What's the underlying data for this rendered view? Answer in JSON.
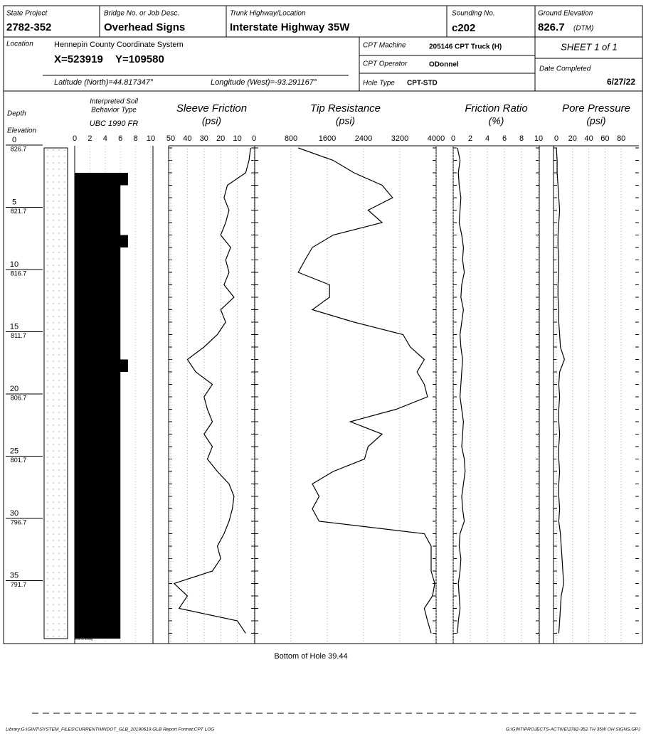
{
  "header": {
    "state_project_label": "State Project",
    "state_project": "2782-352",
    "bridge_label": "Bridge No. or Job Desc.",
    "bridge": "Overhead Signs",
    "trunk_label": "Trunk Highway/Location",
    "trunk": "Interstate Highway 35W",
    "sounding_label": "Sounding No.",
    "sounding": "c202",
    "ground_elev_label": "Ground Elevation",
    "ground_elev": 826.7,
    "ground_elev_unit": "(DTM)",
    "location_label": "Location",
    "location": "Hennepin County Coordinate System",
    "x_coord": "X=523919",
    "y_coord": "Y=109580",
    "latitude": "Latitude (North)=44.817347°",
    "longitude": "Longitude (West)=-93.291167°",
    "cpt_machine_label": "CPT Machine",
    "cpt_machine": "205146 CPT Truck (H)",
    "cpt_operator_label": "CPT Operator",
    "cpt_operator": "ODonnel",
    "hole_type_label": "Hole Type",
    "hole_type": "CPT-STD",
    "sheet": "SHEET 1 of 1",
    "date_label": "Date Completed",
    "date": "6/27/22"
  },
  "log": {
    "depth_label": "Depth",
    "elevation_label": "Elevation",
    "ylim": [
      0,
      40
    ],
    "depth_marks": [
      {
        "depth": 0,
        "elevation": 826.7
      },
      {
        "depth": 5,
        "elevation": 821.7
      },
      {
        "depth": 10,
        "elevation": 816.7
      },
      {
        "depth": 15,
        "elevation": 811.7
      },
      {
        "depth": 20,
        "elevation": 806.7
      },
      {
        "depth": 25,
        "elevation": 801.7
      },
      {
        "depth": 30,
        "elevation": 796.7
      },
      {
        "depth": 35,
        "elevation": 791.7
      }
    ],
    "depths": [
      0,
      1,
      2,
      3,
      4,
      5,
      6,
      7,
      8,
      9,
      10,
      11,
      12,
      13,
      14,
      15,
      16,
      17,
      18,
      19,
      20,
      21,
      22,
      23,
      24,
      25,
      26,
      27,
      28,
      29,
      30,
      31,
      32,
      33,
      34,
      35,
      36,
      37,
      38,
      39
    ],
    "soil": {
      "title": [
        "Interpreted Soil",
        "Behavior Type"
      ],
      "subtitle": "UBC 1990 FR",
      "xlim": [
        0,
        10
      ],
      "ticks": [
        0,
        2,
        4,
        6,
        8,
        10
      ],
      "values": [
        null,
        null,
        7,
        6,
        6,
        6,
        6,
        7,
        6,
        6,
        6,
        6,
        6,
        6,
        6,
        6,
        6,
        7,
        6,
        6,
        6,
        6,
        6,
        6,
        6,
        6,
        6,
        6,
        6,
        6,
        6,
        6,
        6,
        6,
        6,
        6,
        6,
        6,
        6,
        6
      ]
    },
    "sleeve": {
      "title": "Sleeve Friction",
      "unit": "(psi)",
      "xlim": [
        50,
        0
      ],
      "ticks": [
        50,
        40,
        30,
        20,
        10,
        0
      ],
      "values": [
        2,
        3,
        5,
        16,
        18,
        15,
        17,
        20,
        14,
        17,
        15,
        18,
        12,
        20,
        17,
        22,
        30,
        40,
        35,
        25,
        30,
        28,
        25,
        30,
        25,
        28,
        22,
        15,
        12,
        13,
        15,
        18,
        22,
        20,
        25,
        48,
        40,
        45,
        10,
        5
      ]
    },
    "tip": {
      "title": "Tip Resistance",
      "unit": "(psi)",
      "xlim": [
        0,
        4000
      ],
      "ticks": [
        800,
        1600,
        2400,
        3200,
        4000
      ],
      "values": [
        960,
        1730,
        2190,
        2810,
        3040,
        2500,
        2810,
        1730,
        1270,
        1110,
        960,
        1650,
        1650,
        1270,
        2190,
        3270,
        3430,
        3740,
        3580,
        3740,
        3810,
        3120,
        2110,
        2810,
        2500,
        2420,
        1730,
        1270,
        1420,
        1270,
        1420,
        3740,
        3890,
        3890,
        3890,
        3970,
        3920,
        3740,
        3810,
        3890
      ]
    },
    "fr": {
      "title": "Friction Ratio",
      "unit": "(%)",
      "xlim": [
        0,
        10
      ],
      "ticks": [
        0,
        2,
        4,
        6,
        8,
        10
      ],
      "values": [
        0.5,
        0.8,
        0.6,
        0.7,
        0.9,
        0.8,
        0.7,
        1.0,
        1.2,
        1.1,
        1.3,
        1.0,
        0.9,
        1.2,
        1.0,
        0.8,
        0.9,
        1.1,
        1.0,
        0.9,
        0.8,
        1.0,
        1.2,
        1.1,
        1.0,
        1.3,
        1.4,
        1.2,
        1.0,
        1.1,
        1.3,
        0.8,
        0.7,
        0.9,
        0.8,
        0.6,
        0.7,
        0.8,
        0.6,
        0.5
      ]
    },
    "pp": {
      "title": "Pore Pressure",
      "unit": "(psi)",
      "xlim": [
        0,
        100
      ],
      "ticks": [
        0,
        20,
        40,
        60,
        80
      ],
      "values": [
        0,
        1,
        1,
        2,
        3,
        4,
        3,
        2,
        2,
        3,
        3,
        2,
        2,
        3,
        3,
        4,
        5,
        10,
        4,
        3,
        4,
        3,
        3,
        4,
        3,
        3,
        4,
        3,
        3,
        4,
        3,
        5,
        6,
        7,
        8,
        9,
        6,
        5,
        4,
        3
      ]
    },
    "end_label": "End of Boring",
    "bottom_note": "Bottom of Hole 39.44"
  },
  "footer": {
    "left": "Library:G:\\GINT\\SYSTEM_FILES\\CURRENT\\MNDOT_GLB_20190619.GLB  Report Format:CPT LOG",
    "right": "G:\\GINT\\PROJECTS-ACTIVE\\2782-352 TH 35W OH SIGNS.GPJ"
  }
}
